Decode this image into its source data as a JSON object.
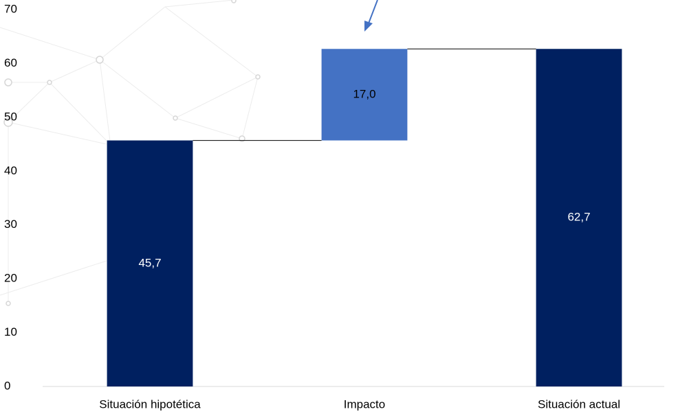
{
  "chart_data": {
    "type": "waterfall",
    "categories": [
      "Situación hipotética",
      "Impacto",
      "Situación actual"
    ],
    "values": [
      45.7,
      17.0,
      62.7
    ],
    "value_labels": [
      "45,7",
      "17,0",
      "62,7"
    ],
    "measure": [
      "absolute",
      "relative",
      "absolute"
    ],
    "colors": [
      "#002060",
      "#4472c4",
      "#002060"
    ],
    "ylim": [
      0,
      70
    ],
    "yticks": [
      0,
      10,
      20,
      30,
      40,
      50,
      60,
      70
    ],
    "grid": false
  }
}
